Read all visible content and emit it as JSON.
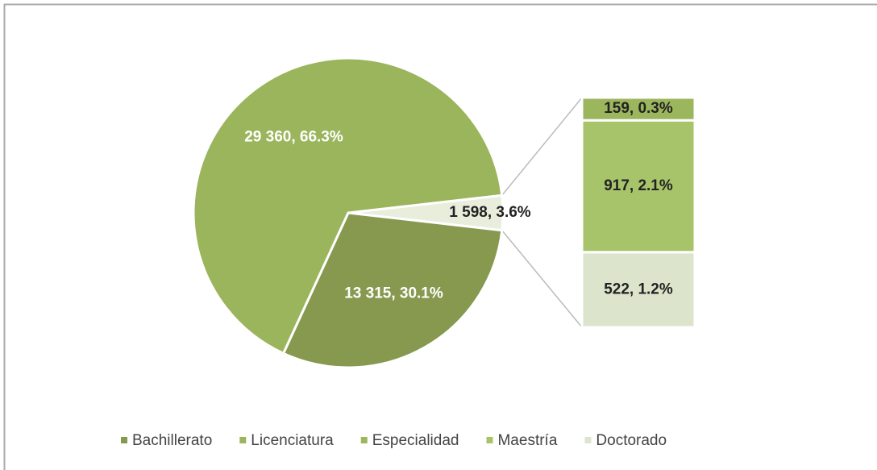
{
  "chart_data": {
    "type": "pie-of-bar",
    "pie": {
      "categories": [
        "Bachillerato",
        "Licenciatura"
      ],
      "values": [
        13315,
        29360
      ],
      "value_labels": [
        "13 315, 30.1%",
        "29 360, 66.3%"
      ],
      "colors": [
        "#86994f",
        "#9bb55c"
      ]
    },
    "other_value_label": "1 598, 3.6%",
    "other_color": "#e9eddc",
    "bar": {
      "categories": [
        "Especialidad",
        "Maestría",
        "Doctorado"
      ],
      "values": [
        159,
        917,
        522
      ],
      "value_labels": [
        "159, 0.3%",
        "917, 2.1%",
        "522, 1.2%"
      ],
      "colors": [
        "#9cb65e",
        "#a8c46b",
        "#dce5cc"
      ]
    }
  }
}
